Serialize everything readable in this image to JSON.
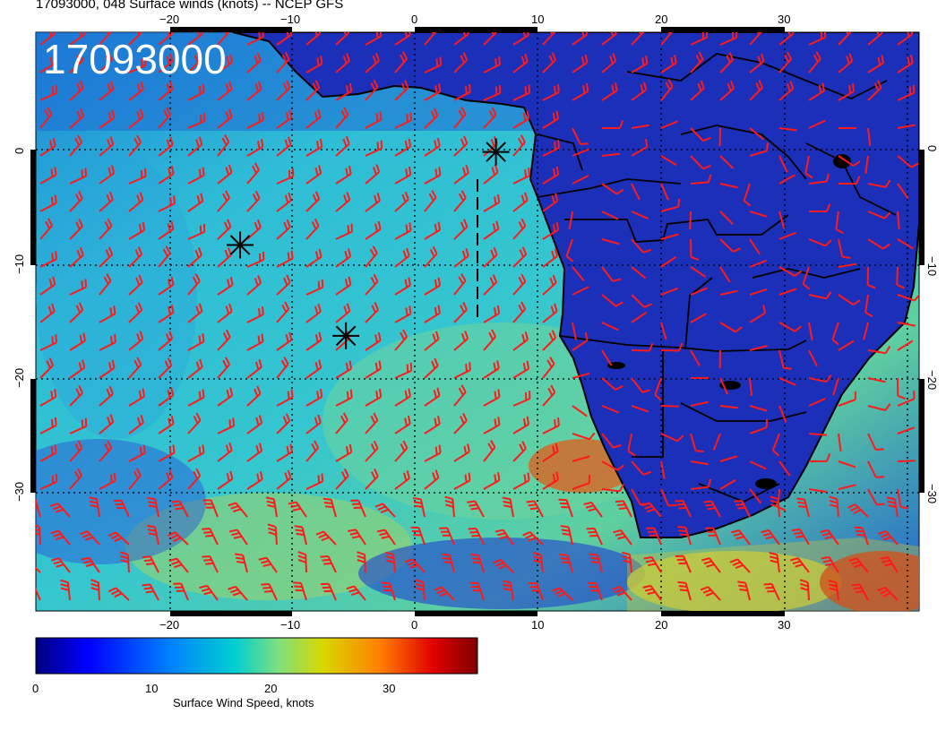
{
  "header": {
    "title": "17093000, 048 Surface winds (knots) -- NCEP GFS",
    "stamp": "17093000"
  },
  "map": {
    "lon_ticks_top": [
      "−20",
      "−10",
      "0",
      "10",
      "20",
      "30"
    ],
    "lon_ticks_bottom": [
      "−20",
      "−10",
      "0",
      "10",
      "20",
      "30"
    ],
    "lat_ticks_left": [
      "0",
      "−10",
      "−20",
      "−30"
    ],
    "lat_ticks_right": [
      "0",
      "−10",
      "−20",
      "−30"
    ],
    "lon_range": [
      -30,
      41
    ],
    "lat_range": [
      -40,
      10
    ],
    "colors": {
      "ocean_mid": "#2fbcd6",
      "land": "#1b2fb8",
      "barb": "#ff1a1a",
      "grid": "#000000"
    },
    "markers": [
      {
        "name": "storm-marker-1",
        "lon": -14.2,
        "lat": -8.3
      },
      {
        "name": "storm-marker-2",
        "lon": -5.6,
        "lat": -16.2
      },
      {
        "name": "storm-marker-3",
        "lon": 6.6,
        "lat": -0.2
      }
    ]
  },
  "colorbar": {
    "ticks": [
      "0",
      "10",
      "20",
      "30"
    ],
    "label": "Surface Wind Speed, knots",
    "range": [
      0,
      37
    ],
    "colors": [
      "#00007f",
      "#0000ff",
      "#007fff",
      "#00cfd0",
      "#7fdf7f",
      "#d8d800",
      "#ff7f00",
      "#e00000",
      "#7f0000"
    ]
  }
}
